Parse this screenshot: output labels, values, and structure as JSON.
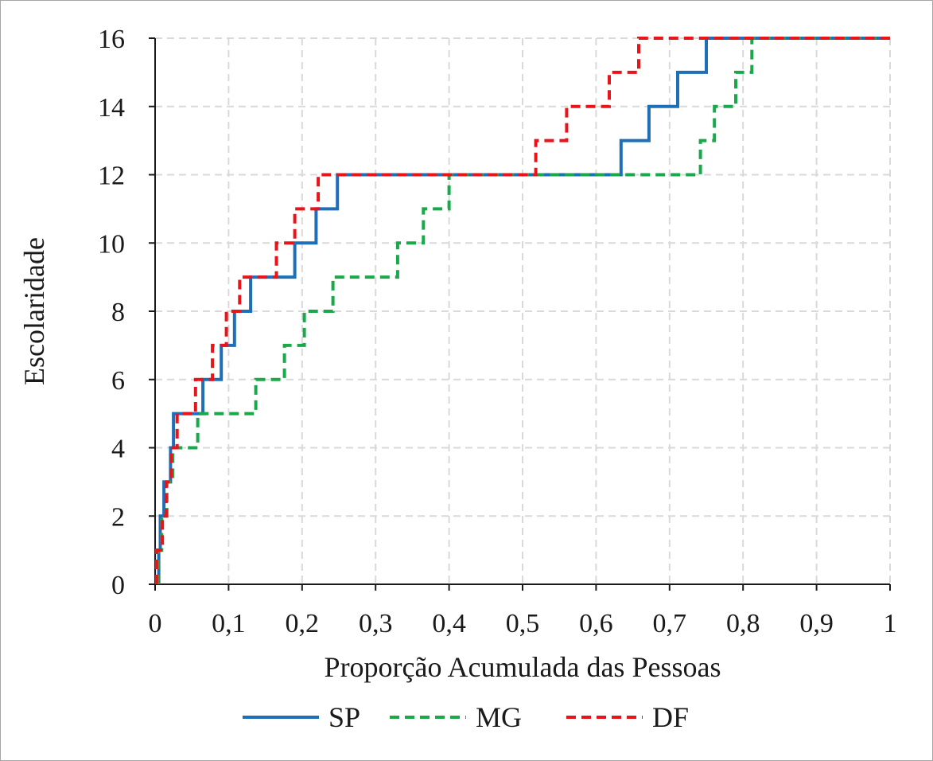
{
  "chart_data": {
    "type": "line",
    "xlabel": "Proporção Acumulada das Pessoas",
    "ylabel": "Escolaridade",
    "xlim": [
      0,
      1
    ],
    "ylim": [
      0,
      16
    ],
    "xticks": [
      0,
      0.1,
      0.2,
      0.3,
      0.4,
      0.5,
      0.6,
      0.7,
      0.8,
      0.9,
      1
    ],
    "xtick_labels": [
      "0",
      "0,1",
      "0,2",
      "0,3",
      "0,4",
      "0,5",
      "0,6",
      "0,7",
      "0,8",
      "0,9",
      "1"
    ],
    "yticks": [
      0,
      2,
      4,
      6,
      8,
      10,
      12,
      14,
      16
    ],
    "ytick_labels": [
      "0",
      "2",
      "4",
      "6",
      "8",
      "10",
      "12",
      "14",
      "16"
    ],
    "grid": true,
    "legend_position": "bottom",
    "series": [
      {
        "name": "SP",
        "color": "#1f6fb8",
        "style": "solid",
        "x": [
          0.005,
          0.005,
          0.007,
          0.007,
          0.012,
          0.012,
          0.016,
          0.016,
          0.021,
          0.021,
          0.025,
          0.025,
          0.032,
          0.032,
          0.065,
          0.065,
          0.09,
          0.09,
          0.108,
          0.108,
          0.13,
          0.13,
          0.19,
          0.19,
          0.219,
          0.219,
          0.248,
          0.248,
          0.634,
          0.634,
          0.672,
          0.672,
          0.711,
          0.711,
          0.75,
          0.75,
          1
        ],
        "y": [
          0,
          1,
          1,
          2,
          2,
          3,
          3,
          3,
          3,
          4,
          4,
          5,
          5,
          5,
          5,
          6,
          6,
          7,
          7,
          8,
          8,
          9,
          9,
          10,
          10,
          11,
          11,
          12,
          12,
          13,
          13,
          14,
          14,
          15,
          15,
          16,
          16
        ]
      },
      {
        "name": "MG",
        "color": "#1aa84a",
        "style": "dashed",
        "x": [
          0.004,
          0.004,
          0.009,
          0.009,
          0.016,
          0.016,
          0.024,
          0.024,
          0.036,
          0.036,
          0.058,
          0.058,
          0.137,
          0.137,
          0.176,
          0.176,
          0.203,
          0.203,
          0.242,
          0.242,
          0.33,
          0.33,
          0.365,
          0.365,
          0.4,
          0.4,
          0.742,
          0.742,
          0.761,
          0.761,
          0.79,
          0.79,
          0.812,
          0.812,
          1
        ],
        "y": [
          0,
          1,
          1,
          2,
          2,
          3,
          3,
          4,
          4,
          4,
          4,
          5,
          5,
          6,
          6,
          7,
          7,
          8,
          8,
          9,
          9,
          10,
          10,
          11,
          11,
          12,
          12,
          13,
          13,
          14,
          14,
          15,
          15,
          16,
          16
        ]
      },
      {
        "name": "DF",
        "color": "#e8141a",
        "style": "dashed",
        "x": [
          0.002,
          0.002,
          0.01,
          0.01,
          0.015,
          0.015,
          0.022,
          0.022,
          0.03,
          0.03,
          0.055,
          0.055,
          0.078,
          0.078,
          0.097,
          0.097,
          0.115,
          0.115,
          0.165,
          0.165,
          0.19,
          0.19,
          0.222,
          0.222,
          0.518,
          0.518,
          0.56,
          0.56,
          0.618,
          0.618,
          0.658,
          0.658,
          1
        ],
        "y": [
          0,
          1,
          1,
          2,
          2,
          3,
          3,
          4,
          4,
          5,
          5,
          6,
          6,
          7,
          7,
          8,
          8,
          9,
          9,
          10,
          10,
          11,
          11,
          12,
          12,
          13,
          13,
          14,
          14,
          15,
          15,
          16,
          16
        ]
      }
    ]
  }
}
